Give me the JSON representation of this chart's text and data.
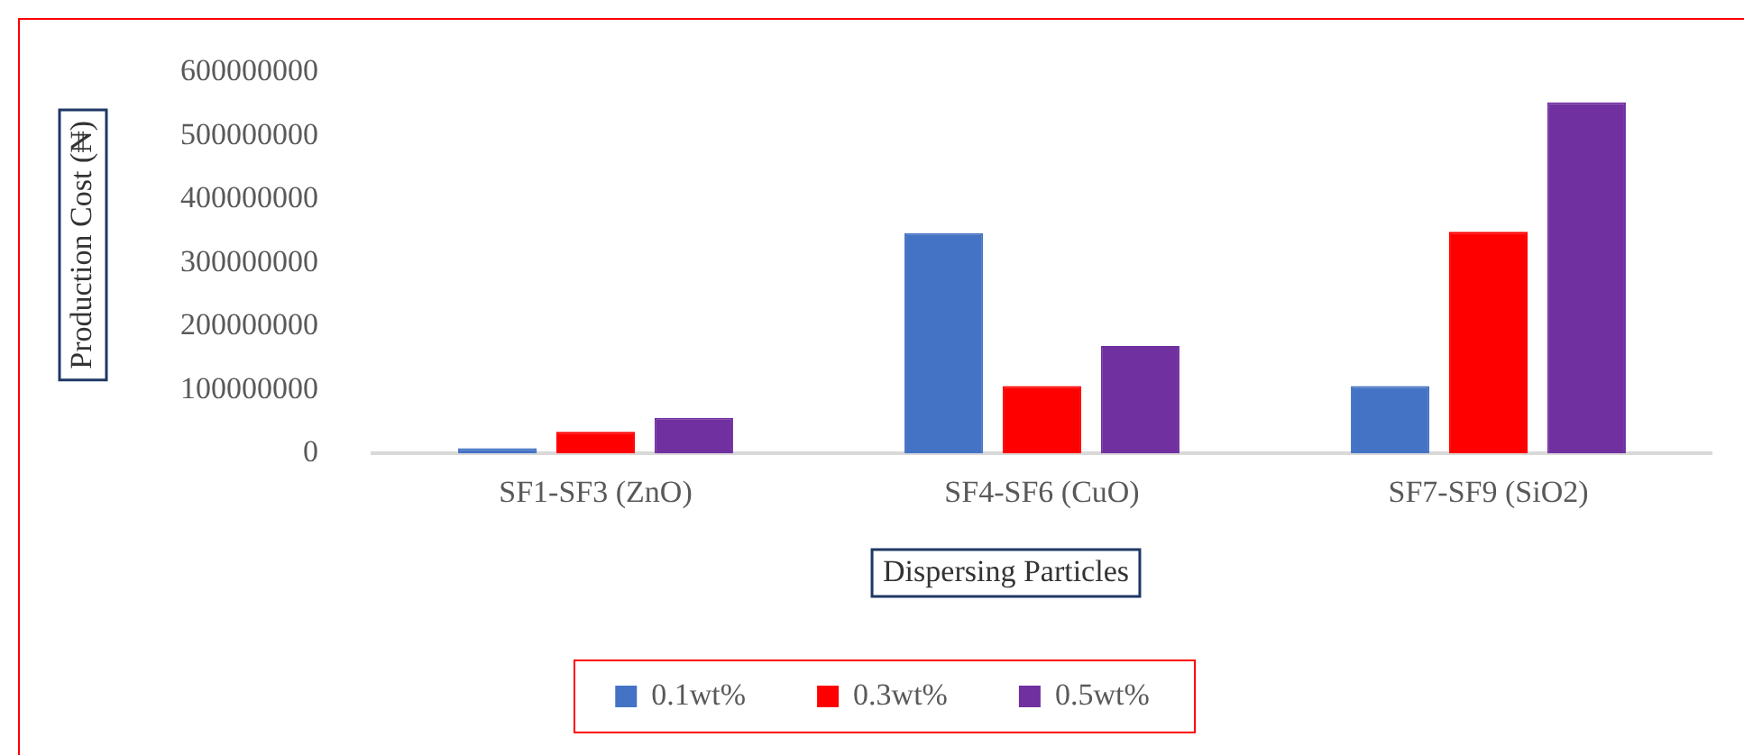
{
  "chart_data": {
    "type": "bar",
    "xlabel": "Dispersing Particles",
    "ylabel": "Production Cost (₦)",
    "categories": [
      "SF1-SF3 (ZnO)",
      "SF4-SF6 (CuO)",
      "SF7-SF9 (SiO2)"
    ],
    "series": [
      {
        "name": "0.1wt%",
        "color": "#4472c4",
        "values": [
          8000000,
          347000000,
          106000000
        ]
      },
      {
        "name": "0.3wt%",
        "color": "#ff0000",
        "values": [
          34000000,
          106000000,
          349000000
        ]
      },
      {
        "name": "0.5wt%",
        "color": "#7030a0",
        "values": [
          56000000,
          169000000,
          553000000
        ]
      }
    ],
    "ylim": [
      0,
      600000000
    ],
    "yticks": [
      0,
      100000000,
      200000000,
      300000000,
      400000000,
      500000000,
      600000000
    ],
    "grid": false,
    "legend": "bottom"
  }
}
